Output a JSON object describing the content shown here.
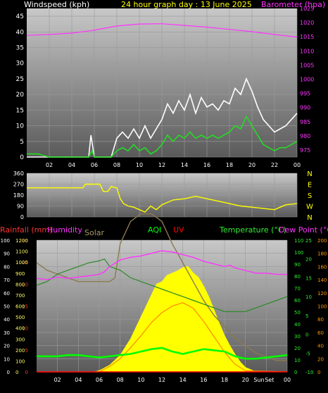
{
  "header": {
    "left_label": "Windspeed (kph)",
    "center_label": "24 hour graph day : 13 June 2025",
    "right_label": "Barometer (hpa)"
  },
  "colors": {
    "panel_top": "#c8c8c8",
    "panel_bottom": "#5a5a5a",
    "grid": "#9a9a9a",
    "wind": "#ffffff",
    "wind_avg": "#22dd22",
    "barometer": "#ff33ff",
    "direction": "#ffff00",
    "rain": "#ff0000",
    "humidity": "#ff33ff",
    "solar": "#ffff00",
    "aqi": "#00ff00",
    "uv": "#ff0000",
    "temperature": "#22cc22",
    "dewpoint": "#ff33ff",
    "tick_yellow": "#ffff66",
    "tick_red": "#ff3333",
    "tick_green": "#33ee33",
    "tick_orange": "#ff9900"
  },
  "chart_data": [
    {
      "type": "line",
      "title": "24 hour graph day : 13 June 2025",
      "xlabel": "",
      "ylabel": "Windspeed (kph)",
      "y2label": "Barometer (hpa)",
      "x_ticks": [
        "02",
        "04",
        "06",
        "08",
        "10",
        "12",
        "14",
        "16",
        "18",
        "20",
        "22",
        "00"
      ],
      "ylim": [
        0,
        47.5
      ],
      "y_ticks": [
        "0",
        "5",
        "10",
        "15",
        "20",
        "25",
        "30",
        "35",
        "40",
        "45"
      ],
      "y2lim": [
        972.5,
        1025
      ],
      "y2_ticks": [
        "975",
        "980",
        "985",
        "990",
        "995",
        "1000",
        "1005",
        "1010",
        "1015",
        "1020",
        "1025"
      ],
      "grid": true,
      "series": [
        {
          "name": "Windspeed",
          "axis": "left",
          "x": [
            0,
            1,
            2,
            3,
            4,
            5,
            5.5,
            5.7,
            6,
            7,
            7.5,
            8,
            8.5,
            9,
            9.5,
            10,
            10.5,
            11,
            11.5,
            12,
            12.5,
            13,
            13.5,
            14,
            14.5,
            15,
            15.5,
            16,
            16.5,
            17,
            17.5,
            18,
            18.5,
            19,
            19.5,
            20,
            20.5,
            21,
            21.5,
            22,
            22.5,
            23,
            23.5,
            24
          ],
          "values": [
            0,
            0,
            0,
            0,
            0,
            0,
            0,
            7,
            0,
            0,
            0,
            6,
            8,
            6,
            9,
            6,
            10,
            6,
            9,
            12,
            17,
            14,
            18,
            15,
            20,
            14,
            19,
            16,
            17,
            15,
            18,
            17,
            22,
            20,
            25,
            21,
            16,
            12,
            10,
            8,
            9,
            10,
            12,
            14
          ]
        },
        {
          "name": "Wind average",
          "axis": "left",
          "x": [
            0,
            1,
            2,
            3,
            4,
            5,
            5.5,
            5.8,
            6,
            7,
            7.5,
            8,
            8.5,
            9,
            9.5,
            10,
            10.5,
            11,
            11.5,
            12,
            12.5,
            13,
            13.5,
            14,
            14.5,
            15,
            15.5,
            16,
            16.5,
            17,
            17.5,
            18,
            18.5,
            19,
            19.5,
            20,
            20.5,
            21,
            21.5,
            22,
            22.5,
            23,
            23.5,
            24
          ],
          "values": [
            1,
            1,
            0,
            0,
            0,
            0,
            0,
            2,
            0,
            0,
            0,
            2,
            3,
            2,
            4,
            2,
            3,
            1,
            2,
            4,
            7,
            5,
            7,
            6,
            8,
            6,
            7,
            6,
            7,
            6,
            7,
            8,
            10,
            9,
            13,
            10,
            7,
            4,
            3,
            2,
            3,
            3,
            4,
            5
          ]
        },
        {
          "name": "Barometer",
          "axis": "right",
          "x": [
            0,
            2,
            4,
            6,
            8,
            10,
            12,
            14,
            16,
            18,
            20,
            22,
            24
          ],
          "values": [
            1015.5,
            1015.8,
            1016.3,
            1017.3,
            1018.8,
            1019.5,
            1019.6,
            1019.0,
            1018.4,
            1017.6,
            1016.8,
            1015.8,
            1014.9
          ]
        }
      ]
    },
    {
      "type": "line",
      "xlabel": "",
      "ylabel": "",
      "ylim": [
        0,
        360
      ],
      "y_ticks": [
        "0",
        "90",
        "180",
        "270",
        "360"
      ],
      "y2_ticks": [
        "N",
        "W",
        "S",
        "E",
        "N"
      ],
      "grid": true,
      "series": [
        {
          "name": "Wind direction",
          "x": [
            0,
            2,
            4,
            5,
            5.2,
            6.5,
            6.8,
            7.2,
            7.5,
            8,
            8.3,
            8.6,
            9,
            9.5,
            10,
            10.5,
            11,
            11.5,
            12,
            13,
            14,
            15,
            16,
            17,
            18,
            19,
            20,
            21,
            22,
            22.5,
            23,
            24
          ],
          "values": [
            240,
            240,
            240,
            240,
            270,
            270,
            210,
            210,
            250,
            240,
            150,
            110,
            90,
            80,
            60,
            40,
            90,
            60,
            100,
            140,
            150,
            170,
            150,
            130,
            110,
            90,
            80,
            70,
            60,
            80,
            100,
            110
          ]
        }
      ]
    },
    {
      "type": "area",
      "xlabel": "",
      "ylabel": "",
      "x_ticks": [
        "02",
        "04",
        "06",
        "08",
        "10",
        "12",
        "14",
        "16",
        "18",
        "20",
        "Sun",
        "Set",
        "00"
      ],
      "header_labels": {
        "rainfall": "Rainfall (mm)",
        "humidity": "Humidity",
        "solar": "Solar",
        "aqi": "AQI",
        "uv": "UV",
        "temperature": "Temperature (°C)",
        "dewpoint": "Dew Point (°C)"
      },
      "axes": {
        "humidity": {
          "lim": [
            0,
            100
          ],
          "ticks": [
            "0",
            "10",
            "20",
            "30",
            "40",
            "50",
            "60",
            "70",
            "80",
            "90",
            "100"
          ]
        },
        "rainfall": {
          "lim": [
            0,
            30
          ],
          "ticks": [
            "0",
            "5",
            "10",
            "15",
            "20",
            "25",
            "30"
          ]
        },
        "solar": {
          "lim": [
            0,
            1200
          ],
          "ticks": [
            "0",
            "100",
            "200",
            "300",
            "400",
            "500",
            "600",
            "700",
            "800",
            "900",
            "1000",
            "1100",
            "1200"
          ]
        },
        "aqi": {
          "lim": [
            0,
            110
          ],
          "ticks": [
            "0",
            "10",
            "20",
            "30",
            "40",
            "50",
            "60",
            "70",
            "80",
            "90",
            "100",
            "110"
          ]
        },
        "uv": {
          "lim": [
            0,
            12
          ],
          "ticks": [
            "0",
            "1",
            "2",
            "3",
            "4",
            "5",
            "6",
            "7",
            "8",
            "9",
            "10",
            "11",
            "12"
          ]
        },
        "temperature": {
          "lim": [
            -10,
            25
          ],
          "ticks": [
            "-10",
            "-5",
            "0",
            "5",
            "10",
            "15",
            "20",
            "25"
          ]
        },
        "aqi_right": {
          "lim": [
            0,
            200
          ],
          "ticks": [
            "0",
            "20",
            "40",
            "60",
            "80",
            "100",
            "120",
            "140",
            "160",
            "180",
            "200"
          ]
        }
      },
      "series": [
        {
          "name": "Humidity",
          "axis": "humidity",
          "x": [
            0,
            1,
            2,
            3,
            4,
            5,
            6,
            6.5,
            7,
            8,
            9,
            10,
            11,
            12,
            13,
            14,
            15,
            16,
            17,
            18,
            18.5,
            19,
            20,
            21,
            22,
            23,
            24
          ],
          "values": [
            71,
            70,
            72,
            71,
            72,
            73,
            74,
            76,
            80,
            85,
            87,
            88,
            90,
            92,
            91,
            89,
            87,
            84,
            82,
            80,
            81,
            79,
            77,
            75,
            75,
            74,
            74
          ]
        },
        {
          "name": "Solar",
          "axis": "solar",
          "x": [
            0,
            5.5,
            6,
            7,
            8,
            9,
            9.5,
            10,
            10.5,
            11,
            11.5,
            12,
            12.5,
            13,
            13.5,
            14,
            14.5,
            15,
            15.5,
            16,
            16.5,
            17,
            17.5,
            18,
            18.5,
            19,
            19.5,
            20,
            21,
            24
          ],
          "values": [
            0,
            0,
            10,
            60,
            150,
            300,
            400,
            500,
            600,
            700,
            800,
            820,
            880,
            900,
            920,
            950,
            960,
            900,
            860,
            780,
            680,
            560,
            440,
            330,
            240,
            160,
            90,
            40,
            0,
            0
          ]
        },
        {
          "name": "AQI",
          "axis": "aqi",
          "x": [
            0,
            1,
            2,
            3,
            4,
            5,
            6,
            7,
            8,
            9,
            10,
            11,
            12,
            13,
            14,
            15,
            16,
            17,
            18,
            19,
            20,
            21,
            22,
            23,
            24
          ],
          "values": [
            13,
            13,
            13,
            14,
            14,
            13,
            12,
            13,
            14,
            15,
            17,
            19,
            20,
            17,
            15,
            17,
            19,
            18,
            17,
            13,
            11,
            11,
            12,
            13,
            14
          ]
        },
        {
          "name": "Temperature",
          "axis": "temperature",
          "x": [
            0,
            1,
            2,
            3,
            4,
            5,
            6,
            7,
            7.5,
            8,
            9,
            10,
            11,
            12,
            13,
            14,
            15,
            16,
            17,
            18,
            19,
            20,
            21,
            22,
            23,
            24
          ],
          "values": [
            19,
            17,
            16,
            15,
            14,
            14,
            14,
            14,
            15,
            24,
            30,
            32,
            32,
            30,
            24,
            19,
            14,
            9,
            5,
            2,
            -1,
            -3,
            -5,
            -6,
            -7,
            -7
          ]
        },
        {
          "name": "Dew Point",
          "axis": "temperature",
          "x": [
            0,
            1,
            2,
            3,
            4,
            5,
            6,
            6.5,
            7,
            8,
            9,
            10,
            11,
            12,
            13,
            14,
            15,
            16,
            17,
            18,
            19,
            20,
            21,
            22,
            23,
            24
          ],
          "values": [
            13,
            14,
            16,
            17,
            18,
            19,
            19.5,
            20,
            18,
            17,
            15,
            14,
            13,
            12,
            11,
            10,
            9,
            8,
            7,
            6,
            6,
            6,
            7,
            8,
            9,
            10
          ]
        },
        {
          "name": "UV",
          "axis": "uv",
          "x": [
            0,
            6,
            7,
            8,
            9,
            10,
            11,
            12,
            13,
            14,
            15,
            16,
            17,
            18,
            19,
            20,
            24
          ],
          "values": [
            0,
            0,
            0.5,
            1.2,
            2.2,
            3.3,
            4.5,
            5.4,
            6.0,
            6.3,
            5.8,
            4.6,
            3.2,
            1.8,
            0.7,
            0.1,
            0
          ]
        },
        {
          "name": "Rainfall",
          "axis": "rainfall",
          "x": [
            0,
            24
          ],
          "values": [
            0,
            0
          ]
        }
      ]
    }
  ]
}
